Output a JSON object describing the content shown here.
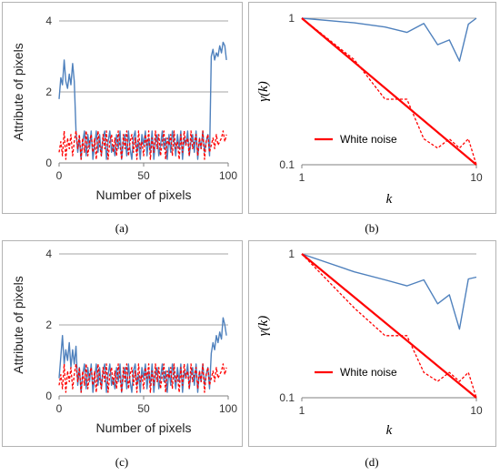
{
  "colors": {
    "blue": "#4f81bd",
    "red": "#ff0000",
    "grid": "#a6a6a6",
    "axis": "#808080"
  },
  "captions": {
    "a": "(a)",
    "b": "(b)",
    "c": "(c)",
    "d": "(d)"
  },
  "chart_data": [
    {
      "id": "a",
      "type": "line",
      "title": "",
      "xlabel": "Number of pixels",
      "ylabel": "Attribute of pixels",
      "xlim": [
        0,
        100
      ],
      "ylim": [
        0,
        4
      ],
      "xticks": [
        0,
        50,
        100
      ],
      "yticks": [
        0,
        2,
        4
      ],
      "grid": "horizontal",
      "series": [
        {
          "style": "solid",
          "color": "blue",
          "x": [
            0,
            1,
            2,
            3,
            4,
            5,
            6,
            7,
            8,
            9,
            10,
            11,
            12,
            13,
            14,
            15,
            16,
            17,
            18,
            19,
            20,
            21,
            22,
            23,
            24,
            25,
            26,
            27,
            28,
            29,
            30,
            31,
            32,
            33,
            34,
            35,
            36,
            37,
            38,
            39,
            40,
            41,
            42,
            43,
            44,
            45,
            46,
            47,
            48,
            49,
            50,
            51,
            52,
            53,
            54,
            55,
            56,
            57,
            58,
            59,
            60,
            61,
            62,
            63,
            64,
            65,
            66,
            67,
            68,
            69,
            70,
            71,
            72,
            73,
            74,
            75,
            76,
            77,
            78,
            79,
            80,
            81,
            82,
            83,
            84,
            85,
            86,
            87,
            88,
            89,
            90,
            91,
            92,
            93,
            94,
            95,
            96,
            97,
            98,
            99
          ],
          "y": [
            1.8,
            2.4,
            2.2,
            2.9,
            2.3,
            2.1,
            2.5,
            2.2,
            2.8,
            2.3,
            0.9,
            0.3,
            0.7,
            0.1,
            0.6,
            0.9,
            0.2,
            0.8,
            0.4,
            0.9,
            0.1,
            0.5,
            0.9,
            0.3,
            0.8,
            0.2,
            0.7,
            0.9,
            0.1,
            0.6,
            0.9,
            0.3,
            0.5,
            0.2,
            0.8,
            0.4,
            0.9,
            0.1,
            0.6,
            0.8,
            0.2,
            0.9,
            0.4,
            0.1,
            0.7,
            0.9,
            0.3,
            0.6,
            0.1,
            0.8,
            0.5,
            0.9,
            0.2,
            0.7,
            0.3,
            0.9,
            0.1,
            0.6,
            0.8,
            0.2,
            0.5,
            0.9,
            0.4,
            0.7,
            0.1,
            0.8,
            0.3,
            0.9,
            0.6,
            0.2,
            0.8,
            0.4,
            0.9,
            0.1,
            0.7,
            0.5,
            0.9,
            0.2,
            0.6,
            0.8,
            0.3,
            0.9,
            0.1,
            0.7,
            0.4,
            0.9,
            0.3,
            0.6,
            0.8,
            0.2,
            3.0,
            3.2,
            2.9,
            3.1,
            3.0,
            3.3,
            3.1,
            3.4,
            3.3,
            2.9
          ]
        },
        {
          "style": "dashed",
          "color": "red",
          "x": [
            0,
            1,
            2,
            3,
            4,
            5,
            6,
            7,
            8,
            9,
            10,
            11,
            12,
            13,
            14,
            15,
            16,
            17,
            18,
            19,
            20,
            21,
            22,
            23,
            24,
            25,
            26,
            27,
            28,
            29,
            30,
            31,
            32,
            33,
            34,
            35,
            36,
            37,
            38,
            39,
            40,
            41,
            42,
            43,
            44,
            45,
            46,
            47,
            48,
            49,
            50,
            51,
            52,
            53,
            54,
            55,
            56,
            57,
            58,
            59,
            60,
            61,
            62,
            63,
            64,
            65,
            66,
            67,
            68,
            69,
            70,
            71,
            72,
            73,
            74,
            75,
            76,
            77,
            78,
            79,
            80,
            81,
            82,
            83,
            84,
            85,
            86,
            87,
            88,
            89,
            90,
            91,
            92,
            93,
            94,
            95,
            96,
            97,
            98,
            99
          ],
          "y": [
            0.3,
            0.6,
            0.2,
            0.9,
            0.1,
            0.7,
            0.4,
            0.8,
            0.2,
            0.6,
            0.9,
            0.4,
            0.8,
            0.1,
            0.7,
            0.3,
            0.9,
            0.2,
            0.6,
            0.8,
            0.3,
            0.7,
            0.1,
            0.9,
            0.5,
            0.2,
            0.8,
            0.4,
            0.9,
            0.1,
            0.6,
            0.8,
            0.3,
            0.7,
            0.2,
            0.9,
            0.5,
            0.1,
            0.8,
            0.4,
            0.9,
            0.2,
            0.6,
            0.8,
            0.3,
            0.7,
            0.1,
            0.9,
            0.4,
            0.6,
            0.2,
            0.8,
            0.5,
            0.9,
            0.1,
            0.7,
            0.3,
            0.9,
            0.4,
            0.8,
            0.2,
            0.6,
            0.9,
            0.1,
            0.7,
            0.5,
            0.8,
            0.2,
            0.9,
            0.4,
            0.6,
            0.1,
            0.8,
            0.3,
            0.9,
            0.5,
            0.7,
            0.2,
            0.9,
            0.4,
            0.6,
            0.8,
            0.2,
            0.7,
            0.4,
            0.9,
            0.1,
            0.6,
            0.8,
            0.3,
            0.5,
            0.7,
            0.4,
            0.8,
            0.5,
            0.6,
            0.7,
            0.9,
            0.6,
            0.8
          ]
        }
      ]
    },
    {
      "id": "b",
      "type": "line",
      "title": "",
      "xlabel": "k",
      "ylabel": "γ(k)",
      "xscale": "log",
      "yscale": "log",
      "xlim": [
        1,
        10
      ],
      "ylim": [
        0.1,
        1
      ],
      "xticks": [
        1,
        10
      ],
      "yticks": [
        0.1,
        1
      ],
      "grid": "horizontal",
      "legend": {
        "position": "lower-left",
        "entries": [
          {
            "name": "White noise",
            "color": "red"
          }
        ]
      },
      "series": [
        {
          "style": "solid",
          "color": "blue",
          "x": [
            1,
            2,
            3,
            4,
            5,
            6,
            7,
            8,
            9,
            10
          ],
          "y": [
            1.0,
            0.93,
            0.87,
            0.8,
            0.92,
            0.66,
            0.71,
            0.51,
            0.91,
            1.0
          ]
        },
        {
          "style": "dashed",
          "color": "red",
          "x": [
            1,
            2,
            3,
            4,
            5,
            6,
            7,
            8,
            9,
            10
          ],
          "y": [
            1.0,
            0.52,
            0.28,
            0.28,
            0.15,
            0.13,
            0.15,
            0.13,
            0.15,
            0.1
          ]
        },
        {
          "style": "solid-thick",
          "color": "red",
          "name": "White noise",
          "x": [
            1,
            10
          ],
          "y": [
            1.0,
            0.1
          ]
        }
      ]
    },
    {
      "id": "c",
      "type": "line",
      "title": "",
      "xlabel": "Number of pixels",
      "ylabel": "Attribute of pixels",
      "xlim": [
        0,
        100
      ],
      "ylim": [
        0,
        4
      ],
      "xticks": [
        0,
        50,
        100
      ],
      "yticks": [
        0,
        2,
        4
      ],
      "grid": "horizontal",
      "series": [
        {
          "style": "solid",
          "color": "blue",
          "x": [
            0,
            1,
            2,
            3,
            4,
            5,
            6,
            7,
            8,
            9,
            10,
            11,
            12,
            13,
            14,
            15,
            16,
            17,
            18,
            19,
            20,
            21,
            22,
            23,
            24,
            25,
            26,
            27,
            28,
            29,
            30,
            31,
            32,
            33,
            34,
            35,
            36,
            37,
            38,
            39,
            40,
            41,
            42,
            43,
            44,
            45,
            46,
            47,
            48,
            49,
            50,
            51,
            52,
            53,
            54,
            55,
            56,
            57,
            58,
            59,
            60,
            61,
            62,
            63,
            64,
            65,
            66,
            67,
            68,
            69,
            70,
            71,
            72,
            73,
            74,
            75,
            76,
            77,
            78,
            79,
            80,
            81,
            82,
            83,
            84,
            85,
            86,
            87,
            88,
            89,
            90,
            91,
            92,
            93,
            94,
            95,
            96,
            97,
            98,
            99
          ],
          "y": [
            0.5,
            1.1,
            1.7,
            0.9,
            1.3,
            1.0,
            1.5,
            0.8,
            1.3,
            0.9,
            1.4,
            0.3,
            0.8,
            0.1,
            0.6,
            0.9,
            0.2,
            0.8,
            0.4,
            0.9,
            0.1,
            0.5,
            0.9,
            0.3,
            0.8,
            0.2,
            0.7,
            0.9,
            0.1,
            0.6,
            0.9,
            0.3,
            0.5,
            0.2,
            0.8,
            0.4,
            0.9,
            0.1,
            0.6,
            0.8,
            0.2,
            0.9,
            0.4,
            0.1,
            0.7,
            0.9,
            0.3,
            0.6,
            0.1,
            0.8,
            0.5,
            0.9,
            0.2,
            0.7,
            0.3,
            0.9,
            0.1,
            0.6,
            0.8,
            0.2,
            0.5,
            0.9,
            0.4,
            0.7,
            0.1,
            0.8,
            0.3,
            0.9,
            0.6,
            0.2,
            0.8,
            0.4,
            0.9,
            0.1,
            0.7,
            0.5,
            0.9,
            0.2,
            0.6,
            0.8,
            0.3,
            0.9,
            0.1,
            0.7,
            0.4,
            0.9,
            0.3,
            0.6,
            0.8,
            0.2,
            1.2,
            1.5,
            1.3,
            1.7,
            1.5,
            1.8,
            1.6,
            2.2,
            2.0,
            1.7
          ]
        },
        {
          "style": "dashed",
          "color": "red",
          "x": [
            0,
            1,
            2,
            3,
            4,
            5,
            6,
            7,
            8,
            9,
            10,
            11,
            12,
            13,
            14,
            15,
            16,
            17,
            18,
            19,
            20,
            21,
            22,
            23,
            24,
            25,
            26,
            27,
            28,
            29,
            30,
            31,
            32,
            33,
            34,
            35,
            36,
            37,
            38,
            39,
            40,
            41,
            42,
            43,
            44,
            45,
            46,
            47,
            48,
            49,
            50,
            51,
            52,
            53,
            54,
            55,
            56,
            57,
            58,
            59,
            60,
            61,
            62,
            63,
            64,
            65,
            66,
            67,
            68,
            69,
            70,
            71,
            72,
            73,
            74,
            75,
            76,
            77,
            78,
            79,
            80,
            81,
            82,
            83,
            84,
            85,
            86,
            87,
            88,
            89,
            90,
            91,
            92,
            93,
            94,
            95,
            96,
            97,
            98,
            99
          ],
          "y": [
            0.3,
            0.6,
            0.2,
            0.9,
            0.1,
            0.7,
            0.4,
            0.8,
            0.2,
            0.6,
            0.9,
            0.4,
            0.8,
            0.1,
            0.7,
            0.3,
            0.9,
            0.2,
            0.6,
            0.8,
            0.3,
            0.7,
            0.1,
            0.9,
            0.5,
            0.2,
            0.8,
            0.4,
            0.9,
            0.1,
            0.6,
            0.8,
            0.3,
            0.7,
            0.2,
            0.9,
            0.5,
            0.1,
            0.8,
            0.4,
            0.9,
            0.2,
            0.6,
            0.8,
            0.3,
            0.7,
            0.1,
            0.9,
            0.4,
            0.6,
            0.2,
            0.8,
            0.5,
            0.9,
            0.1,
            0.7,
            0.3,
            0.9,
            0.4,
            0.8,
            0.2,
            0.6,
            0.9,
            0.1,
            0.7,
            0.5,
            0.8,
            0.2,
            0.9,
            0.4,
            0.6,
            0.1,
            0.8,
            0.3,
            0.9,
            0.5,
            0.7,
            0.2,
            0.9,
            0.4,
            0.6,
            0.8,
            0.2,
            0.7,
            0.4,
            0.9,
            0.1,
            0.6,
            0.8,
            0.3,
            0.5,
            0.7,
            0.4,
            0.8,
            0.5,
            0.6,
            0.7,
            0.9,
            0.6,
            0.8
          ]
        }
      ]
    },
    {
      "id": "d",
      "type": "line",
      "title": "",
      "xlabel": "k",
      "ylabel": "γ(k)",
      "xscale": "log",
      "yscale": "log",
      "xlim": [
        1,
        10
      ],
      "ylim": [
        0.1,
        1
      ],
      "xticks": [
        1,
        10
      ],
      "yticks": [
        0.1,
        1
      ],
      "grid": "horizontal",
      "legend": {
        "position": "lower-left",
        "entries": [
          {
            "name": "White noise",
            "color": "red"
          }
        ]
      },
      "series": [
        {
          "style": "solid",
          "color": "blue",
          "x": [
            1,
            2,
            3,
            4,
            5,
            6,
            7,
            8,
            9,
            10
          ],
          "y": [
            1.0,
            0.75,
            0.66,
            0.6,
            0.66,
            0.45,
            0.52,
            0.3,
            0.67,
            0.69
          ]
        },
        {
          "style": "dashed",
          "color": "red",
          "x": [
            1,
            2,
            3,
            4,
            5,
            6,
            7,
            8,
            9,
            10
          ],
          "y": [
            1.0,
            0.42,
            0.27,
            0.27,
            0.15,
            0.13,
            0.15,
            0.13,
            0.15,
            0.1
          ]
        },
        {
          "style": "solid-thick",
          "color": "red",
          "name": "White noise",
          "x": [
            1,
            10
          ],
          "y": [
            1.0,
            0.1
          ]
        }
      ]
    }
  ]
}
